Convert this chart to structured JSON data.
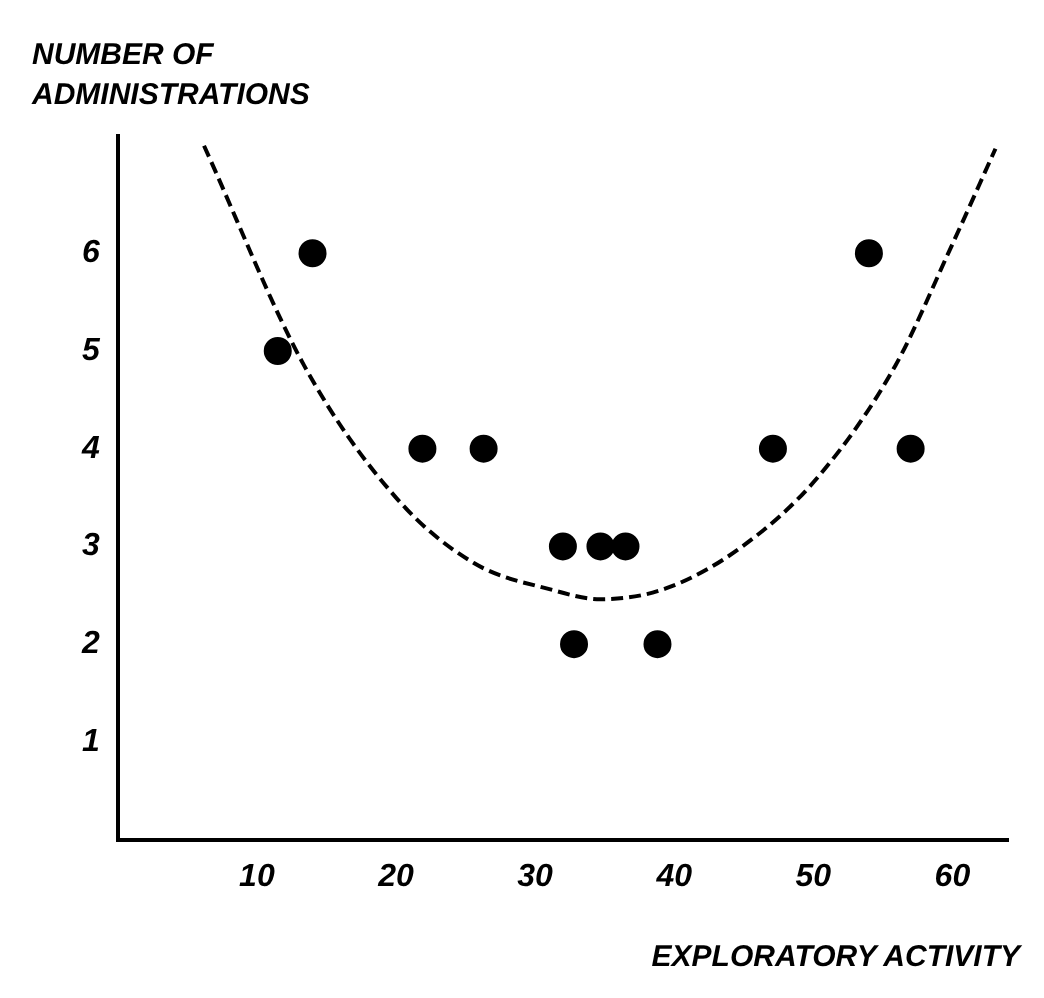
{
  "chart_data": {
    "type": "scatter",
    "xlabel": "EXPLORATORY ACTIVITY",
    "ylabel": "NUMBER OF ADMINISTRATIONS",
    "xlim": [
      0,
      64
    ],
    "ylim": [
      0,
      7.2
    ],
    "xticks": [
      10,
      20,
      30,
      40,
      50,
      60
    ],
    "yticks": [
      1,
      2,
      3,
      4,
      5,
      6
    ],
    "grid": false,
    "legend": false,
    "series": [
      {
        "type": "scatter",
        "color": "#000000",
        "marker": "circle",
        "x": [
          11.5,
          14,
          21.9,
          26.3,
          32,
          32.8,
          34.7,
          36.5,
          38.8,
          47.1,
          54,
          57
        ],
        "values": [
          5,
          6,
          4,
          4,
          3,
          2,
          3,
          3,
          2,
          4,
          6,
          4
        ]
      },
      {
        "type": "line",
        "color": "#000000",
        "marker": "none",
        "line_style": "dashed",
        "x": [
          6.2,
          13.4,
          20,
          25.6,
          31.1,
          34.7,
          39.4,
          44.9,
          50.4,
          55.9,
          59.8,
          63.1
        ],
        "values": [
          7.1,
          4.85,
          3.5,
          2.83,
          2.56,
          2.46,
          2.57,
          3.0,
          3.72,
          4.85,
          6.03,
          7.07
        ]
      }
    ]
  }
}
